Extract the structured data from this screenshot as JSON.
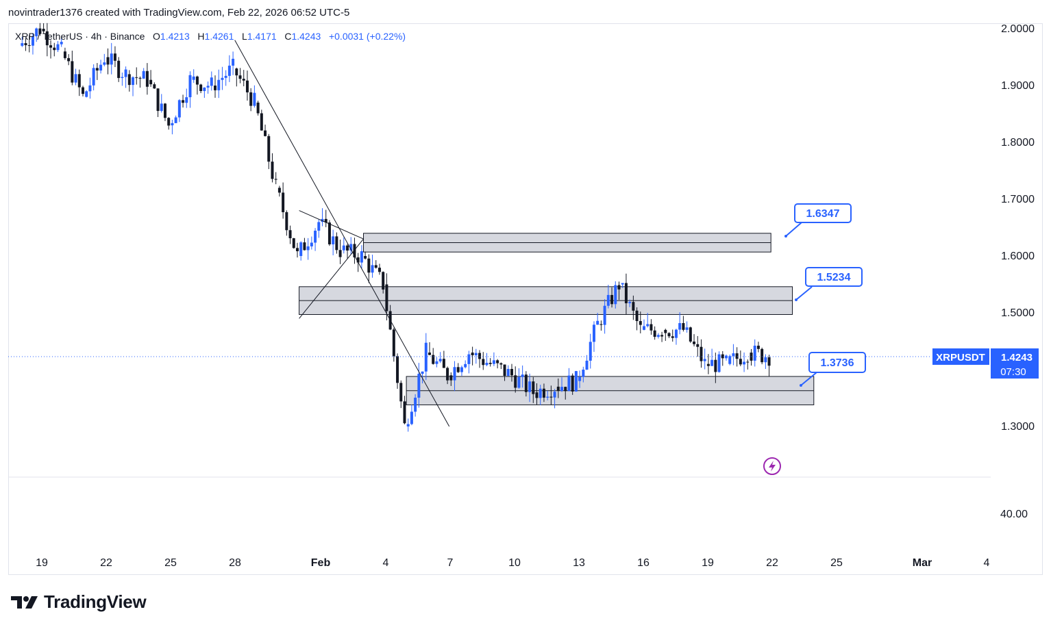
{
  "header": {
    "text": "novintrader1376 created with TradingView.com, Feb 22, 2026 06:52 UTC-5"
  },
  "legend": {
    "symbol": "XRP / TetherUS · 4h · Binance",
    "open_label": "O",
    "open": "1.4213",
    "high_label": "H",
    "high": "1.4261",
    "low_label": "L",
    "low": "1.4171",
    "close_label": "C",
    "close": "1.4243",
    "change": "+0.0031 (+0.22%)"
  },
  "price_badge": {
    "symbol": "XRPUSDT",
    "price": "1.4243",
    "countdown": "07:30"
  },
  "callouts": {
    "a": "1.6347",
    "b": "1.5234",
    "c": "1.3736"
  },
  "brand": {
    "name": "TradingView"
  },
  "colors": {
    "up": "#2962ff",
    "down": "#131722",
    "accent": "#2962ff",
    "zone_fill": "#d1d4dc",
    "lightning": "#9c27b0"
  },
  "chart_data": {
    "type": "candlestick",
    "timeframe": "4h",
    "ylim": [
      1.2,
      2.01
    ],
    "y_ticks": [
      "2.0000",
      "1.9000",
      "1.8000",
      "1.7000",
      "1.6000",
      "1.5000",
      "1.3000"
    ],
    "lower_pane_tick": "40.00",
    "x_ticks": [
      "19",
      "22",
      "25",
      "28",
      "Feb",
      "4",
      "7",
      "10",
      "13",
      "16",
      "19",
      "22",
      "25",
      "Mar",
      "4"
    ],
    "last_price": 1.4243,
    "zones": [
      {
        "from": "2026-02-03",
        "to": "2026-02-22",
        "low": 1.607,
        "high": 1.64
      },
      {
        "from": "2026-01-31",
        "to": "2026-02-23",
        "low": 1.497,
        "high": 1.546
      },
      {
        "from": "2026-02-05",
        "to": "2026-02-24",
        "low": 1.338,
        "high": 1.388
      }
    ],
    "trendlines": [
      {
        "from": [
          "2026-01-28",
          1.98
        ],
        "to": [
          "2026-02-07",
          1.3
        ]
      },
      {
        "from": [
          "2026-01-31",
          1.68
        ],
        "to": [
          "2026-02-03",
          1.63
        ]
      },
      {
        "from": [
          "2026-01-31",
          1.49
        ],
        "to": [
          "2026-02-03",
          1.63
        ]
      }
    ],
    "candles_close_path": [
      [
        "2026-01-18",
        1.97
      ],
      [
        "2026-01-19",
        2.0
      ],
      [
        "2026-01-20",
        1.96
      ],
      [
        "2026-01-21",
        1.88
      ],
      [
        "2026-01-22",
        1.95
      ],
      [
        "2026-01-23",
        1.92
      ],
      [
        "2026-01-24",
        1.91
      ],
      [
        "2026-01-25",
        1.83
      ],
      [
        "2026-01-26",
        1.91
      ],
      [
        "2026-01-27",
        1.9
      ],
      [
        "2026-01-28",
        1.93
      ],
      [
        "2026-01-29",
        1.87
      ],
      [
        "2026-01-30",
        1.72
      ],
      [
        "2026-01-31",
        1.6
      ],
      [
        "2026-02-01",
        1.66
      ],
      [
        "2026-02-02",
        1.61
      ],
      [
        "2026-02-03",
        1.6
      ],
      [
        "2026-02-04",
        1.55
      ],
      [
        "2026-02-05",
        1.3
      ],
      [
        "2026-02-06",
        1.43
      ],
      [
        "2026-02-07",
        1.39
      ],
      [
        "2026-02-08",
        1.43
      ],
      [
        "2026-02-09",
        1.41
      ],
      [
        "2026-02-10",
        1.39
      ],
      [
        "2026-02-11",
        1.36
      ],
      [
        "2026-02-12",
        1.37
      ],
      [
        "2026-02-13",
        1.38
      ],
      [
        "2026-02-14",
        1.48
      ],
      [
        "2026-02-15",
        1.55
      ],
      [
        "2026-02-16",
        1.47
      ],
      [
        "2026-02-17",
        1.47
      ],
      [
        "2026-02-18",
        1.47
      ],
      [
        "2026-02-19",
        1.41
      ],
      [
        "2026-02-20",
        1.41
      ],
      [
        "2026-02-21",
        1.43
      ],
      [
        "2026-02-22",
        1.4243
      ]
    ]
  }
}
